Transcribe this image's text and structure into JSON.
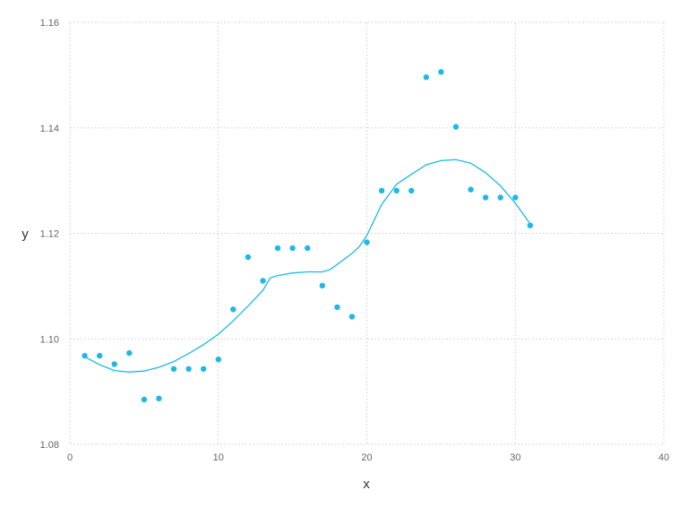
{
  "chart_data": {
    "type": "scatter",
    "xlabel": "x",
    "ylabel": "y",
    "xlim": [
      0,
      40
    ],
    "ylim": [
      1.08,
      1.16
    ],
    "xticks": [
      0,
      10,
      20,
      30,
      40
    ],
    "yticks": [
      1.08,
      1.1,
      1.12,
      1.14,
      1.16
    ],
    "xtick_labels": [
      "0",
      "10",
      "20",
      "30",
      "40"
    ],
    "ytick_labels": [
      "1.08",
      "1.10",
      "1.12",
      "1.14",
      "1.16"
    ],
    "grid": true,
    "color": "#1cb8e8",
    "points": {
      "x": [
        1,
        2,
        3,
        4,
        5,
        6,
        7,
        8,
        9,
        10,
        11,
        12,
        13,
        14,
        15,
        16,
        17,
        18,
        19,
        20,
        21,
        22,
        23,
        24,
        25,
        26,
        27,
        28,
        29,
        30,
        31
      ],
      "y": [
        1.0968,
        1.0968,
        1.0952,
        1.0973,
        1.0885,
        1.0887,
        1.0943,
        1.0943,
        1.0943,
        1.0961,
        1.1056,
        1.1155,
        1.111,
        1.1172,
        1.1172,
        1.1172,
        1.1101,
        1.106,
        1.1042,
        1.1183,
        1.1281,
        1.1281,
        1.1281,
        1.1496,
        1.1506,
        1.1402,
        1.1283,
        1.1268,
        1.1268,
        1.1268,
        1.1215
      ]
    },
    "fit_line": {
      "x": [
        1,
        2,
        3,
        4,
        5,
        6,
        7,
        8,
        9,
        10,
        11,
        12,
        13,
        13.5,
        14,
        15,
        16,
        17,
        17.5,
        18,
        19,
        19.5,
        20,
        21,
        22,
        23,
        24,
        25,
        26,
        27,
        28,
        29,
        30,
        31
      ],
      "y": [
        1.0966,
        1.0951,
        1.094,
        1.0937,
        1.0939,
        1.0946,
        1.0957,
        1.0972,
        1.0989,
        1.1009,
        1.1034,
        1.1062,
        1.1092,
        1.1116,
        1.112,
        1.1125,
        1.1127,
        1.1127,
        1.1131,
        1.1141,
        1.1162,
        1.1175,
        1.1196,
        1.1255,
        1.1293,
        1.1312,
        1.133,
        1.1338,
        1.134,
        1.1333,
        1.1315,
        1.129,
        1.1257,
        1.1218
      ]
    }
  }
}
